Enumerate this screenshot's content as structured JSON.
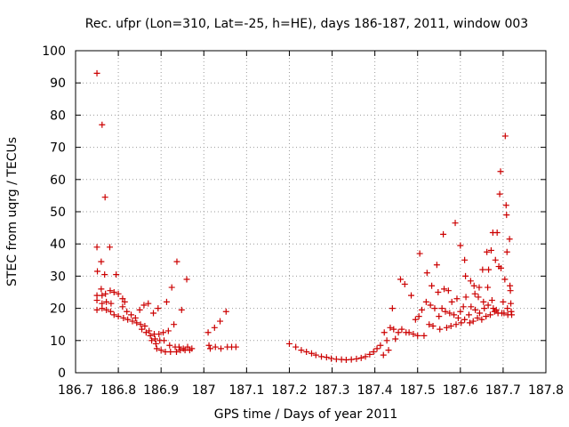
{
  "chart_data": {
    "type": "scatter",
    "title": "Rec. ufpr (Lon=310, Lat=-25, h=HE), days 186-187, 2011, window 003",
    "xlabel": "GPS time / Days of year 2011",
    "ylabel": "STEC from uqrg / TECUs",
    "xlim": [
      186.7,
      187.8
    ],
    "ylim": [
      0,
      100
    ],
    "xticks": [
      186.7,
      186.8,
      186.9,
      187.0,
      187.1,
      187.2,
      187.3,
      187.4,
      187.5,
      187.6,
      187.7,
      187.8
    ],
    "xtick_labels": [
      "186.7",
      "186.8",
      "186.9",
      "187",
      "187.1",
      "187.2",
      "187.3",
      "187.4",
      "187.5",
      "187.6",
      "187.7",
      "187.8"
    ],
    "yticks": [
      0,
      10,
      20,
      30,
      40,
      50,
      60,
      70,
      80,
      90,
      100
    ],
    "ytick_labels": [
      "0",
      "10",
      "20",
      "30",
      "40",
      "50",
      "60",
      "70",
      "80",
      "90",
      "100"
    ],
    "grid": true,
    "marker": "+",
    "marker_color": "#cc0000",
    "series": [
      {
        "name": "STEC",
        "points": [
          [
            186.75,
            93.0
          ],
          [
            186.75,
            39.0
          ],
          [
            186.751,
            31.5
          ],
          [
            186.75,
            24.0
          ],
          [
            186.75,
            22.5
          ],
          [
            186.75,
            19.5
          ],
          [
            186.762,
            77.0
          ],
          [
            186.76,
            34.5
          ],
          [
            186.76,
            26.0
          ],
          [
            186.762,
            24.0
          ],
          [
            186.762,
            21.5
          ],
          [
            186.762,
            20.0
          ],
          [
            186.769,
            54.5
          ],
          [
            186.768,
            30.5
          ],
          [
            186.77,
            24.5
          ],
          [
            186.772,
            22.0
          ],
          [
            186.772,
            19.5
          ],
          [
            186.78,
            39.0
          ],
          [
            186.781,
            25.5
          ],
          [
            186.783,
            21.5
          ],
          [
            186.782,
            19.0
          ],
          [
            186.79,
            25.0
          ],
          [
            186.79,
            18.0
          ],
          [
            186.795,
            30.5
          ],
          [
            186.8,
            24.5
          ],
          [
            186.8,
            17.5
          ],
          [
            186.81,
            23.0
          ],
          [
            186.81,
            20.5
          ],
          [
            186.812,
            17.0
          ],
          [
            186.815,
            22.0
          ],
          [
            186.82,
            19.0
          ],
          [
            186.822,
            16.5
          ],
          [
            186.83,
            18.0
          ],
          [
            186.833,
            16.0
          ],
          [
            186.84,
            17.0
          ],
          [
            186.843,
            15.5
          ],
          [
            186.85,
            19.5
          ],
          [
            186.852,
            15.0
          ],
          [
            186.855,
            13.5
          ],
          [
            186.86,
            21.0
          ],
          [
            186.862,
            14.5
          ],
          [
            186.865,
            12.5
          ],
          [
            186.87,
            21.5
          ],
          [
            186.872,
            13.0
          ],
          [
            186.875,
            11.5
          ],
          [
            186.878,
            10.0
          ],
          [
            186.882,
            18.5
          ],
          [
            186.884,
            12.0
          ],
          [
            186.886,
            10.5
          ],
          [
            186.888,
            9.0
          ],
          [
            186.89,
            7.5
          ],
          [
            186.893,
            20.0
          ],
          [
            186.895,
            12.0
          ],
          [
            186.897,
            10.0
          ],
          [
            186.9,
            7.0
          ],
          [
            186.905,
            12.5
          ],
          [
            186.907,
            10.0
          ],
          [
            186.91,
            6.5
          ],
          [
            186.913,
            22.0
          ],
          [
            186.917,
            13.0
          ],
          [
            186.92,
            8.5
          ],
          [
            186.922,
            6.5
          ],
          [
            186.925,
            26.5
          ],
          [
            186.93,
            15.0
          ],
          [
            186.933,
            8.0
          ],
          [
            186.936,
            6.5
          ],
          [
            186.937,
            34.5
          ],
          [
            186.942,
            8.0
          ],
          [
            186.945,
            7.0
          ],
          [
            186.948,
            19.5
          ],
          [
            186.952,
            7.5
          ],
          [
            186.956,
            7.0
          ],
          [
            186.96,
            29.0
          ],
          [
            186.962,
            8.0
          ],
          [
            186.967,
            7.0
          ],
          [
            186.972,
            7.5
          ],
          [
            187.01,
            12.5
          ],
          [
            187.012,
            8.5
          ],
          [
            187.015,
            7.5
          ],
          [
            187.025,
            14.0
          ],
          [
            187.027,
            8.0
          ],
          [
            187.038,
            16.0
          ],
          [
            187.04,
            7.5
          ],
          [
            187.052,
            19.0
          ],
          [
            187.055,
            8.0
          ],
          [
            187.065,
            8.0
          ],
          [
            187.075,
            8.0
          ],
          [
            187.2,
            9.0
          ],
          [
            187.215,
            8.0
          ],
          [
            187.228,
            7.0
          ],
          [
            187.24,
            6.5
          ],
          [
            187.252,
            6.0
          ],
          [
            187.262,
            5.5
          ],
          [
            187.275,
            5.0
          ],
          [
            187.287,
            4.8
          ],
          [
            187.298,
            4.4
          ],
          [
            187.31,
            4.2
          ],
          [
            187.322,
            4.1
          ],
          [
            187.333,
            4.0
          ],
          [
            187.345,
            4.1
          ],
          [
            187.357,
            4.3
          ],
          [
            187.368,
            4.6
          ],
          [
            187.378,
            5.0
          ],
          [
            187.388,
            5.7
          ],
          [
            187.397,
            6.5
          ],
          [
            187.405,
            7.5
          ],
          [
            187.413,
            8.5
          ],
          [
            187.42,
            5.5
          ],
          [
            187.422,
            12.5
          ],
          [
            187.428,
            10.0
          ],
          [
            187.432,
            7.0
          ],
          [
            187.436,
            14.0
          ],
          [
            187.441,
            20.0
          ],
          [
            187.444,
            13.5
          ],
          [
            187.448,
            10.5
          ],
          [
            187.455,
            12.5
          ],
          [
            187.46,
            29.0
          ],
          [
            187.463,
            13.5
          ],
          [
            187.47,
            27.5
          ],
          [
            187.473,
            12.5
          ],
          [
            187.48,
            12.5
          ],
          [
            187.485,
            24.0
          ],
          [
            187.49,
            12.0
          ],
          [
            187.495,
            16.5
          ],
          [
            187.5,
            11.5
          ],
          [
            187.503,
            17.5
          ],
          [
            187.505,
            37.0
          ],
          [
            187.51,
            19.5
          ],
          [
            187.515,
            11.5
          ],
          [
            187.52,
            22.0
          ],
          [
            187.522,
            31.0
          ],
          [
            187.527,
            15.0
          ],
          [
            187.53,
            21.0
          ],
          [
            187.533,
            27.0
          ],
          [
            187.536,
            14.5
          ],
          [
            187.54,
            20.0
          ],
          [
            187.545,
            33.5
          ],
          [
            187.548,
            25.0
          ],
          [
            187.55,
            17.5
          ],
          [
            187.552,
            13.5
          ],
          [
            187.557,
            20.0
          ],
          [
            187.56,
            43.0
          ],
          [
            187.562,
            26.0
          ],
          [
            187.565,
            19.0
          ],
          [
            187.568,
            14.0
          ],
          [
            187.572,
            25.5
          ],
          [
            187.575,
            18.5
          ],
          [
            187.578,
            14.5
          ],
          [
            187.58,
            22.0
          ],
          [
            187.585,
            18.0
          ],
          [
            187.588,
            46.5
          ],
          [
            187.59,
            15.0
          ],
          [
            187.592,
            23.0
          ],
          [
            187.595,
            17.0
          ],
          [
            187.6,
            39.5
          ],
          [
            187.6,
            19.0
          ],
          [
            187.602,
            15.5
          ],
          [
            187.607,
            20.5
          ],
          [
            187.61,
            35.0
          ],
          [
            187.61,
            16.5
          ],
          [
            187.612,
            30.0
          ],
          [
            187.613,
            23.5
          ],
          [
            187.62,
            18.0
          ],
          [
            187.622,
            15.5
          ],
          [
            187.624,
            28.5
          ],
          [
            187.625,
            20.5
          ],
          [
            187.63,
            16.0
          ],
          [
            187.632,
            27.0
          ],
          [
            187.634,
            24.5
          ],
          [
            187.635,
            19.5
          ],
          [
            187.64,
            17.0
          ],
          [
            187.642,
            23.5
          ],
          [
            187.644,
            26.5
          ],
          [
            187.645,
            18.5
          ],
          [
            187.65,
            16.5
          ],
          [
            187.652,
            32.0
          ],
          [
            187.654,
            22.0
          ],
          [
            187.656,
            20.0
          ],
          [
            187.66,
            17.5
          ],
          [
            187.662,
            37.5
          ],
          [
            187.664,
            26.5
          ],
          [
            187.665,
            21.0
          ],
          [
            187.666,
            32.0
          ],
          [
            187.67,
            18.0
          ],
          [
            187.672,
            38.0
          ],
          [
            187.674,
            22.5
          ],
          [
            187.676,
            43.5
          ],
          [
            187.677,
            20.0
          ],
          [
            187.68,
            19.0
          ],
          [
            187.682,
            35.0
          ],
          [
            187.684,
            19.5
          ],
          [
            187.686,
            43.5
          ],
          [
            187.688,
            18.5
          ],
          [
            187.69,
            33.0
          ],
          [
            187.692,
            55.5
          ],
          [
            187.694,
            62.5
          ],
          [
            187.695,
            32.5
          ],
          [
            187.697,
            18.5
          ],
          [
            187.7,
            22.0
          ],
          [
            187.702,
            18.5
          ],
          [
            187.704,
            29.0
          ],
          [
            187.705,
            73.5
          ],
          [
            187.707,
            52.0
          ],
          [
            187.708,
            49.0
          ],
          [
            187.709,
            37.5
          ],
          [
            187.71,
            20.0
          ],
          [
            187.711,
            18.0
          ],
          [
            187.715,
            41.5
          ],
          [
            187.716,
            27.0
          ],
          [
            187.717,
            25.5
          ],
          [
            187.718,
            21.5
          ],
          [
            187.719,
            19.0
          ],
          [
            187.72,
            18.0
          ]
        ]
      }
    ]
  }
}
